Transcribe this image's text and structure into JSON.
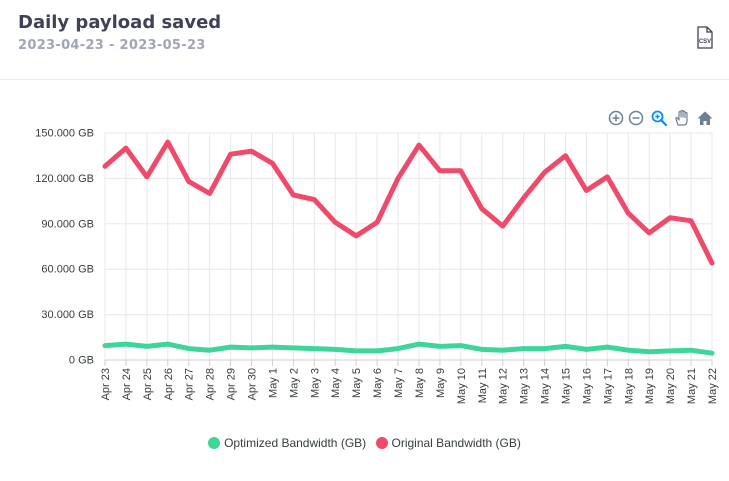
{
  "header": {
    "title": "Daily payload saved",
    "date_range": "2023-04-23 - 2023-05-23",
    "export_icon": "csv-file-icon",
    "export_label": "CSV"
  },
  "toolbar": {
    "icons": [
      "zoom-in-icon",
      "zoom-out-icon",
      "zoom-select-icon",
      "pan-hand-icon",
      "reset-home-icon"
    ],
    "active_color": "#008ffb",
    "inactive_color": "#6e8192"
  },
  "chart_data": {
    "type": "line",
    "title": "",
    "xlabel": "",
    "ylabel": "",
    "ylim": [
      0,
      150000
    ],
    "yticks": [
      0,
      30000,
      60000,
      90000,
      120000,
      150000
    ],
    "ytick_labels": [
      "0 GB",
      "30.000 GB",
      "60.000 GB",
      "90.000 GB",
      "120.000 GB",
      "150.000 GB"
    ],
    "grid": true,
    "legend_position": "bottom",
    "categories": [
      "Apr 23",
      "Apr 24",
      "Apr 25",
      "Apr 26",
      "Apr 27",
      "Apr 28",
      "Apr 29",
      "Apr 30",
      "May 1",
      "May 2",
      "May 3",
      "May 4",
      "May 5",
      "May 6",
      "May 7",
      "May 8",
      "May 9",
      "May 10",
      "May 11",
      "May 12",
      "May 13",
      "May 14",
      "May 15",
      "May 16",
      "May 17",
      "May 18",
      "May 19",
      "May 20",
      "May 21",
      "May 22"
    ],
    "series": [
      {
        "name": "Optimized Bandwidth (GB)",
        "color": "#3dd598",
        "values": [
          9500,
          10500,
          9000,
          10500,
          7500,
          6500,
          8500,
          8000,
          8500,
          8000,
          7500,
          7000,
          6000,
          6000,
          7500,
          10500,
          9000,
          9500,
          7000,
          6500,
          7500,
          7500,
          9000,
          7000,
          8500,
          6500,
          5500,
          6000,
          6500,
          4500
        ]
      },
      {
        "name": "Original Bandwidth (GB)",
        "color": "#ef4a6a",
        "values": [
          128000,
          140000,
          121000,
          144000,
          118000,
          110000,
          136000,
          138000,
          130000,
          109000,
          106000,
          91000,
          82000,
          91000,
          120000,
          142000,
          125000,
          125000,
          100000,
          88500,
          107000,
          124000,
          135000,
          112000,
          121000,
          97000,
          84000,
          94000,
          92000,
          64000
        ]
      }
    ]
  }
}
